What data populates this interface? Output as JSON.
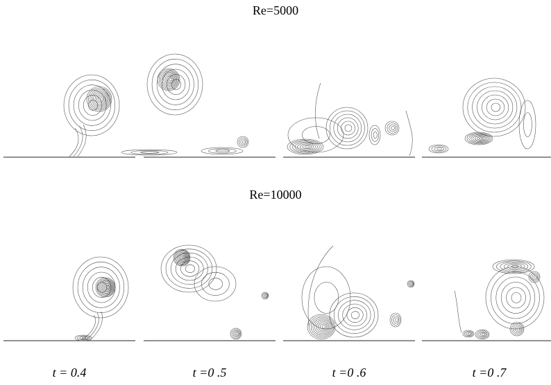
{
  "figure": {
    "rows": [
      {
        "title": "Re=5000"
      },
      {
        "title": "Re=10000"
      }
    ],
    "column_labels": [
      "t = 0.4",
      "t =0 .5",
      "t =0 .6",
      "t =0 .7"
    ]
  }
}
